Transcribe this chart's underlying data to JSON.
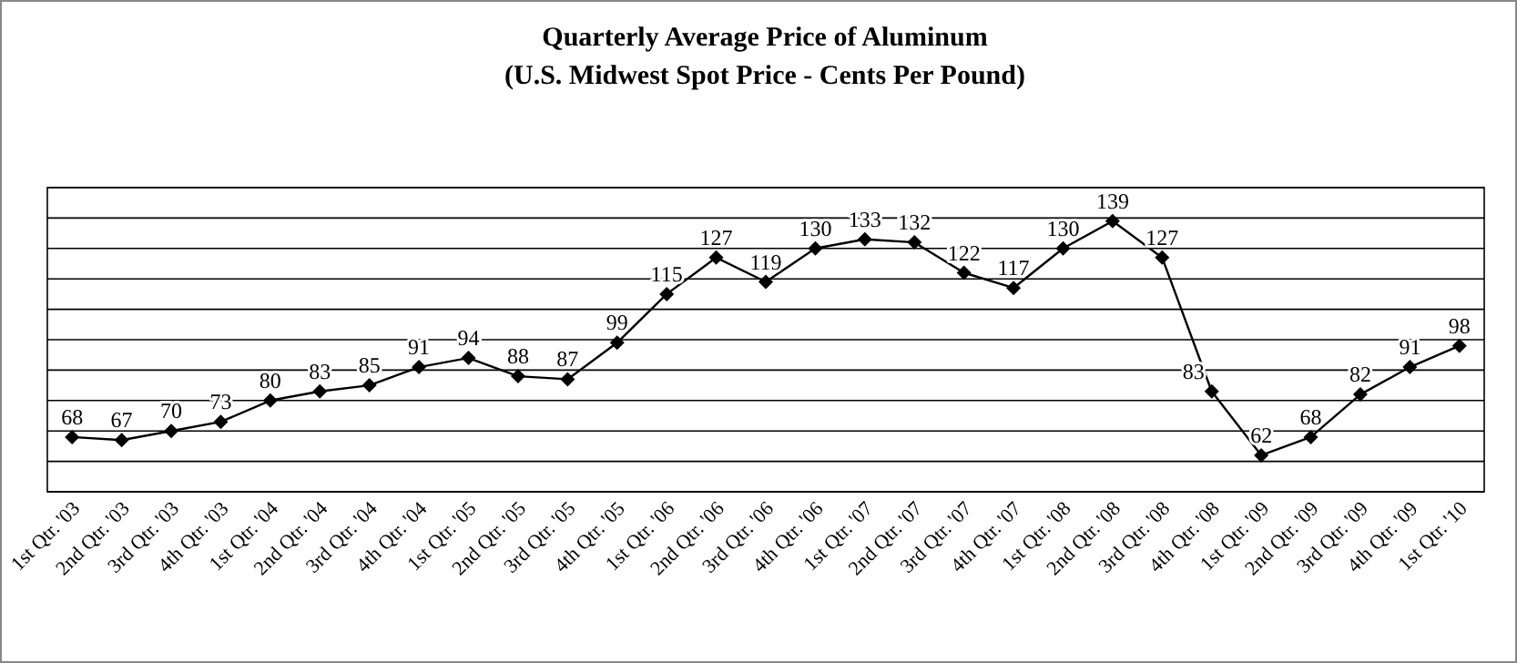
{
  "chart_data": {
    "type": "line",
    "title": "Quarterly Average Price of Aluminum",
    "subtitle": "(U.S. Midwest Spot Price - Cents Per Pound)",
    "categories": [
      "1st Qtr. '03",
      "2nd Qtr. '03",
      "3rd Qtr. '03",
      "4th Qtr. '03",
      "1st Qtr. '04",
      "2nd Qtr. '04",
      "3rd Qtr. '04",
      "4th Qtr. '04",
      "1st Qtr. '05",
      "2nd Qtr. '05",
      "3rd Qtr. '05",
      "4th Qtr. '05",
      "1st Qtr. '06",
      "2nd Qtr. '06",
      "3rd Qtr. '06",
      "4th Qtr. '06",
      "1st Qtr. '07",
      "2nd Qtr. '07",
      "3rd Qtr. '07",
      "4th Qtr. '07",
      "1st Qtr. '08",
      "2nd Qtr. '08",
      "3rd Qtr. '08",
      "4th Qtr. '08",
      "1st Qtr. '09",
      "2nd Qtr. '09",
      "3rd Qtr. '09",
      "4th Qtr. '09",
      "1st Qtr. '10"
    ],
    "series": [
      {
        "color": "#000000",
        "values": [
          68,
          67,
          70,
          73,
          80,
          83,
          85,
          91,
          94,
          88,
          87,
          99,
          115,
          127,
          119,
          130,
          133,
          132,
          122,
          117,
          130,
          139,
          127,
          83,
          62,
          68,
          82,
          91,
          98
        ]
      }
    ],
    "ylim": [
      50,
      150
    ],
    "yticks": [
      {
        "value": 50,
        "label": null
      },
      {
        "value": 60,
        "label": null
      },
      {
        "value": 70,
        "label": null
      },
      {
        "value": 80,
        "label": null
      },
      {
        "value": 90,
        "label": null
      },
      {
        "value": 100,
        "label": null
      },
      {
        "value": 110,
        "label": null
      },
      {
        "value": 120,
        "label": null
      },
      {
        "value": 130,
        "label": null
      },
      {
        "value": 140,
        "label": null
      },
      {
        "value": 150,
        "label": null
      }
    ],
    "grid": "y",
    "tick_labels": "x",
    "data_labels": true,
    "marker": "diamond",
    "line_style": "solid"
  }
}
